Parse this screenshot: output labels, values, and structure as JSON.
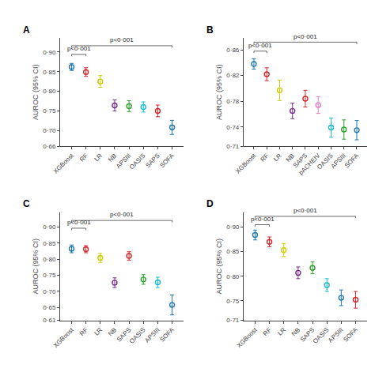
{
  "chart_data": [
    {
      "type": "scatter",
      "title": "A",
      "ylabel": "AUROC (95% CI)",
      "marker": "circle-open",
      "grid": false,
      "categories": [
        "XGBoost",
        "RF",
        "LR",
        "NB",
        "APSIII",
        "OASIS",
        "SAPS",
        "SOFA"
      ],
      "values": [
        0.862,
        0.849,
        0.825,
        0.764,
        0.762,
        0.76,
        0.75,
        0.708
      ],
      "ci_low": [
        0.853,
        0.838,
        0.81,
        0.75,
        0.748,
        0.747,
        0.735,
        0.69
      ],
      "ci_high": [
        0.871,
        0.86,
        0.84,
        0.778,
        0.776,
        0.773,
        0.765,
        0.726
      ],
      "colors": [
        "#1f77b4",
        "#d62728",
        "#cccc00",
        "#7b2d8b",
        "#2ca02c",
        "#17becf",
        "#d62728",
        "#1f77b4"
      ],
      "ylim": [
        0.66,
        0.935
      ],
      "yticks": [
        {
          "value": 0.66,
          "label": "0·66"
        },
        {
          "value": 0.7,
          "label": "0·70"
        },
        {
          "value": 0.75,
          "label": "0·75"
        },
        {
          "value": 0.8,
          "label": "0·80"
        },
        {
          "value": 0.85,
          "label": "0·85"
        },
        {
          "value": 0.9,
          "label": "0·90"
        }
      ],
      "annotations": [
        {
          "text": "p<0·001",
          "between": [
            "XGBoost",
            "RF"
          ],
          "y": 0.894
        },
        {
          "text": "p<0·001",
          "between": [
            "XGBoost",
            "SOFA"
          ],
          "y": 0.916
        }
      ]
    },
    {
      "type": "scatter",
      "title": "B",
      "ylabel": "AUROC (95% CI)",
      "marker": "circle-open",
      "grid": false,
      "categories": [
        "XGBoost",
        "RF",
        "LR",
        "NB",
        "SAPS",
        "pACHEIV",
        "OASIS",
        "APSIII",
        "SOFA"
      ],
      "values": [
        0.838,
        0.822,
        0.797,
        0.765,
        0.784,
        0.774,
        0.739,
        0.736,
        0.735
      ],
      "ci_low": [
        0.83,
        0.812,
        0.781,
        0.753,
        0.771,
        0.761,
        0.724,
        0.721,
        0.72
      ],
      "ci_high": [
        0.846,
        0.832,
        0.813,
        0.777,
        0.797,
        0.787,
        0.754,
        0.751,
        0.75
      ],
      "colors": [
        "#1f77b4",
        "#d62728",
        "#cccc00",
        "#7b2d8b",
        "#d62728",
        "#e377c2",
        "#17becf",
        "#2ca02c",
        "#1f77b4"
      ],
      "ylim": [
        0.71,
        0.878
      ],
      "yticks": [
        {
          "value": 0.71,
          "label": "0·71"
        },
        {
          "value": 0.74,
          "label": "0·74"
        },
        {
          "value": 0.78,
          "label": "0·78"
        },
        {
          "value": 0.82,
          "label": "0·82"
        },
        {
          "value": 0.86,
          "label": "0·86"
        }
      ],
      "annotations": [
        {
          "text": "p<0·001",
          "between": [
            "XGBoost",
            "RF"
          ],
          "y": 0.858
        },
        {
          "text": "p<0·001",
          "between": [
            "XGBoost",
            "SOFA"
          ],
          "y": 0.872
        }
      ]
    },
    {
      "type": "scatter",
      "title": "C",
      "ylabel": "AUROC (95% CI)",
      "marker": "circle-open",
      "grid": false,
      "categories": [
        "XGBoost",
        "RF",
        "LR",
        "NB",
        "SAPS",
        "OASIS",
        "APSIII",
        "SOFA"
      ],
      "values": [
        0.832,
        0.831,
        0.804,
        0.727,
        0.81,
        0.737,
        0.728,
        0.658
      ],
      "ci_low": [
        0.82,
        0.82,
        0.79,
        0.712,
        0.797,
        0.722,
        0.712,
        0.627
      ],
      "ci_high": [
        0.844,
        0.842,
        0.818,
        0.742,
        0.823,
        0.752,
        0.744,
        0.689
      ],
      "colors": [
        "#1f77b4",
        "#d62728",
        "#cccc00",
        "#7b2d8b",
        "#d62728",
        "#2ca02c",
        "#17becf",
        "#1f77b4"
      ],
      "ylim": [
        0.61,
        0.945
      ],
      "yticks": [
        {
          "value": 0.61,
          "label": "0·61"
        },
        {
          "value": 0.65,
          "label": "0·65"
        },
        {
          "value": 0.7,
          "label": "0·70"
        },
        {
          "value": 0.75,
          "label": "0·75"
        },
        {
          "value": 0.8,
          "label": "0·80"
        },
        {
          "value": 0.85,
          "label": "0·85"
        },
        {
          "value": 0.9,
          "label": "0·90"
        }
      ],
      "annotations": [
        {
          "text": "p<0·001",
          "between": [
            "XGBoost",
            "RF"
          ],
          "y": 0.896
        },
        {
          "text": "p<0·001",
          "between": [
            "XGBoost",
            "SOFA"
          ],
          "y": 0.92
        }
      ]
    },
    {
      "type": "scatter",
      "title": "D",
      "ylabel": "AUROC (95% CI)",
      "marker": "circle-open",
      "grid": false,
      "categories": [
        "XGBoost",
        "RF",
        "LR",
        "NB",
        "SAPS",
        "OASIS",
        "APSIII",
        "SOFA"
      ],
      "values": [
        0.884,
        0.87,
        0.853,
        0.807,
        0.817,
        0.782,
        0.756,
        0.752
      ],
      "ci_low": [
        0.874,
        0.86,
        0.84,
        0.795,
        0.805,
        0.769,
        0.74,
        0.735
      ],
      "ci_high": [
        0.894,
        0.88,
        0.866,
        0.819,
        0.829,
        0.795,
        0.772,
        0.769
      ],
      "colors": [
        "#1f77b4",
        "#d62728",
        "#cccc00",
        "#7b2d8b",
        "#2ca02c",
        "#17becf",
        "#1f77b4",
        "#d62728"
      ],
      "ylim": [
        0.71,
        0.93
      ],
      "yticks": [
        {
          "value": 0.71,
          "label": "0·71"
        },
        {
          "value": 0.75,
          "label": "0·75"
        },
        {
          "value": 0.8,
          "label": "0·80"
        },
        {
          "value": 0.85,
          "label": "0·85"
        },
        {
          "value": 0.9,
          "label": "0·90"
        }
      ],
      "annotations": [
        {
          "text": "p<0·001",
          "between": [
            "XGBoost",
            "RF"
          ],
          "y": 0.905
        },
        {
          "text": "p<0·001",
          "between": [
            "XGBoost",
            "SOFA"
          ],
          "y": 0.922
        }
      ]
    }
  ]
}
